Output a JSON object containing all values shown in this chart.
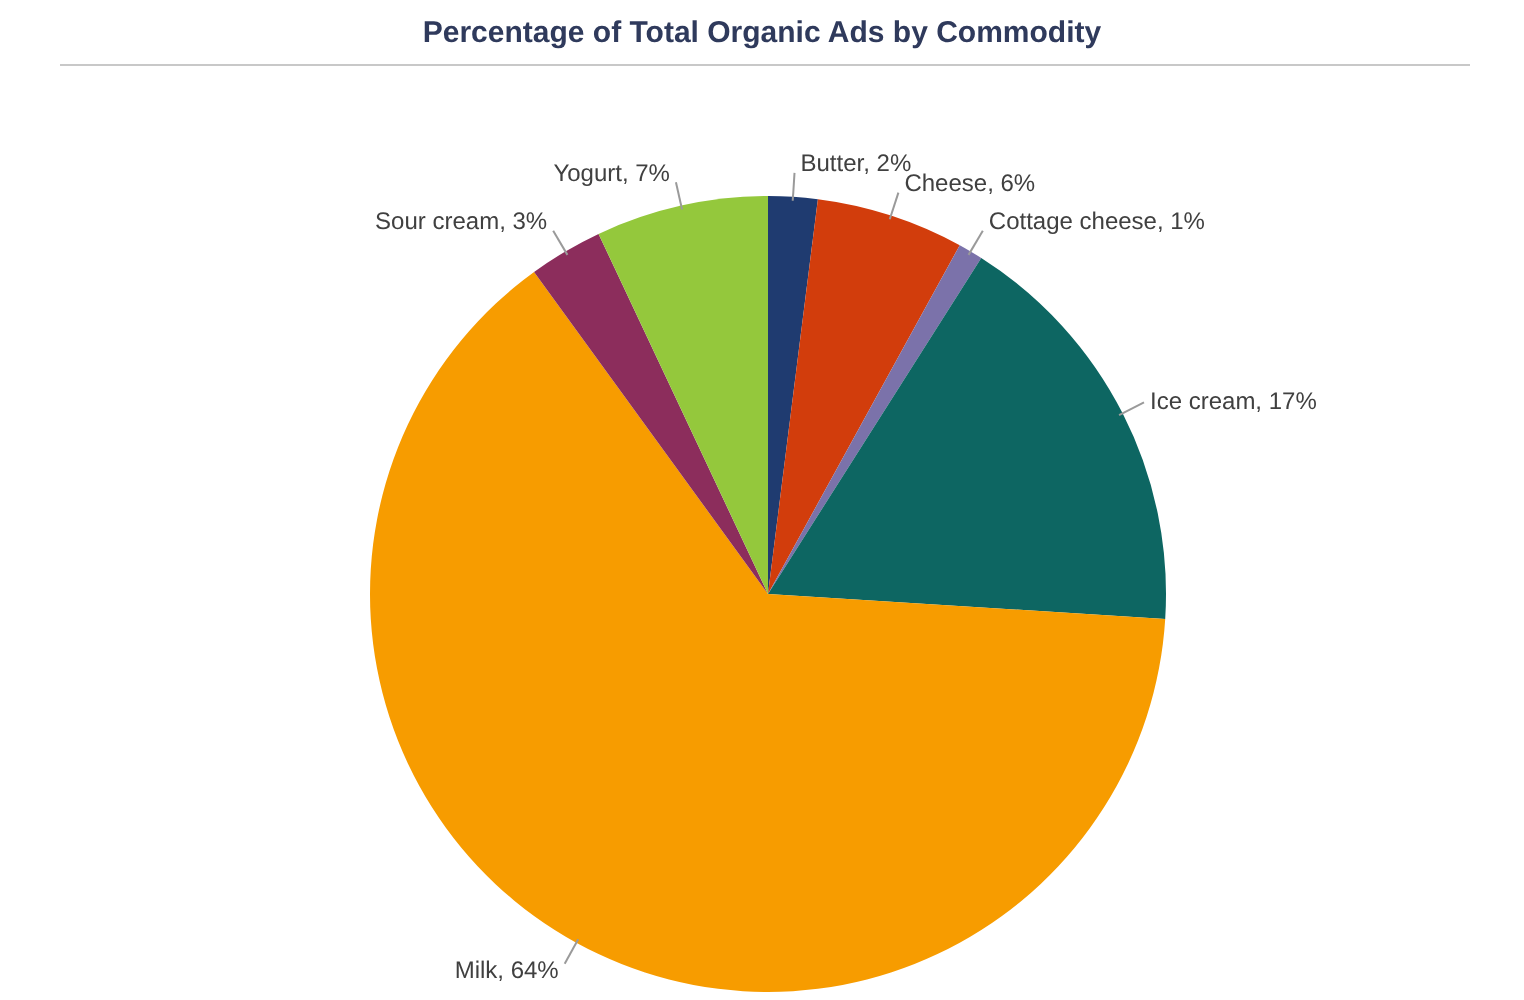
{
  "chart_data": {
    "type": "pie",
    "title": "Percentage of Total Organic Ads by Commodity",
    "categories": [
      "Butter",
      "Cheese",
      "Cottage cheese",
      "Ice cream",
      "Milk",
      "Sour cream",
      "Yogurt"
    ],
    "values": [
      2,
      6,
      1,
      17,
      64,
      3,
      7
    ],
    "colors": [
      "#1f3b70",
      "#d23d0c",
      "#7b72aa",
      "#0d6662",
      "#f79c00",
      "#8c2d5c",
      "#94c83c"
    ],
    "value_labels": [
      "2%",
      "6%",
      "1%",
      "17%",
      "64%",
      "3%",
      "7%"
    ],
    "legend": false
  }
}
